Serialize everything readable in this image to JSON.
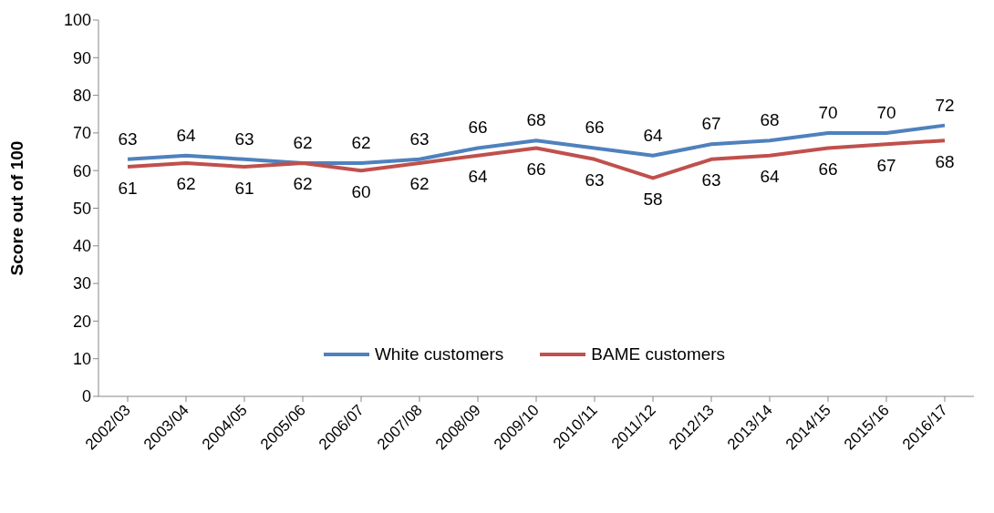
{
  "chart_data": {
    "type": "line",
    "ylabel": "Score out of 100",
    "categories": [
      "2002/03",
      "2003/04",
      "2004/05",
      "2005/06",
      "2006/07",
      "2007/08",
      "2008/09",
      "2009/10",
      "2010/11",
      "2011/12",
      "2012/13",
      "2013/14",
      "2014/15",
      "2015/16",
      "2016/17"
    ],
    "series": [
      {
        "name": "White customers",
        "color": "#4f81bd",
        "values": [
          63,
          64,
          63,
          62,
          62,
          63,
          66,
          68,
          66,
          64,
          67,
          68,
          70,
          70,
          72
        ]
      },
      {
        "name": "BAME customers",
        "color": "#c0504d",
        "values": [
          61,
          62,
          61,
          62,
          60,
          62,
          64,
          66,
          63,
          58,
          63,
          64,
          66,
          67,
          68
        ]
      }
    ],
    "ylim": [
      0,
      100
    ],
    "yticks": [
      0,
      10,
      20,
      30,
      40,
      50,
      60,
      70,
      80,
      90,
      100
    ],
    "grid": false,
    "legend": "bottom",
    "marker": "none",
    "line_style": "solid",
    "data_labels": true
  }
}
